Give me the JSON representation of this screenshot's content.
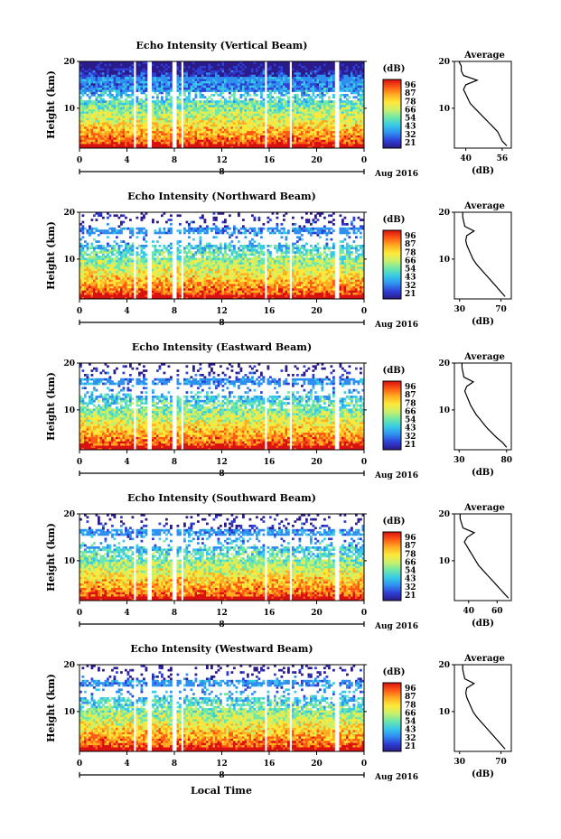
{
  "figure": {
    "x_title": "Local Time",
    "date_label": "Aug 2016",
    "day_marker": "8",
    "colorbar_unit": "(dB)",
    "colorbar_levels": [
      "96",
      "87",
      "78",
      "66",
      "54",
      "43",
      "32",
      "21"
    ],
    "colormap": [
      "#2b1a8a",
      "#2f3fd6",
      "#2f8ff0",
      "#38c9e8",
      "#6fe7a8",
      "#c9f06a",
      "#ffe83a",
      "#ffae22",
      "#ff5a14",
      "#d81010"
    ]
  },
  "chart_data": [
    {
      "type": "heatmap",
      "title": "Echo Intensity (Vertical Beam)",
      "ylabel": "Height (km)",
      "x_ticks": [
        "0",
        "4",
        "8",
        "12",
        "16",
        "20",
        "0"
      ],
      "y_ticks": [
        "20",
        "10"
      ],
      "xlim": [
        0,
        24
      ],
      "ylim": [
        1.5,
        20
      ],
      "gaps_hours": [
        [
          4.5,
          4.85
        ],
        [
          5.8,
          6.05
        ],
        [
          7.85,
          8.1
        ],
        [
          8.55,
          8.8
        ],
        [
          15.55,
          15.85
        ],
        [
          17.65,
          17.9
        ],
        [
          21.6,
          21.85
        ]
      ],
      "profile": {
        "title": "Average",
        "xlabel": "(dB)",
        "x_ticks": [
          "40",
          "56"
        ],
        "xlim": [
          35,
          60
        ],
        "heights_km": [
          2,
          3,
          4,
          5,
          6,
          7,
          8,
          9,
          10,
          11,
          12,
          13,
          14,
          15,
          16,
          17,
          18,
          19,
          20
        ],
        "values_db": [
          58,
          56,
          55,
          54,
          52,
          50,
          48,
          46,
          44,
          42,
          41,
          40,
          39,
          40,
          45,
          39,
          38,
          38,
          37
        ]
      }
    },
    {
      "type": "heatmap",
      "title": "Echo Intensity (Northward Beam)",
      "ylabel": "Height (km)",
      "x_ticks": [
        "0",
        "4",
        "8",
        "12",
        "16",
        "20",
        "0"
      ],
      "y_ticks": [
        "20",
        "10"
      ],
      "xlim": [
        0,
        24
      ],
      "ylim": [
        1.5,
        20
      ],
      "gaps_hours": [
        [
          4.5,
          4.85
        ],
        [
          5.8,
          6.05
        ],
        [
          7.85,
          8.1
        ],
        [
          8.55,
          8.8
        ],
        [
          15.55,
          15.85
        ],
        [
          17.65,
          17.9
        ],
        [
          21.6,
          21.85
        ]
      ],
      "profile": {
        "title": "Average",
        "xlabel": "(dB)",
        "x_ticks": [
          "30",
          "70"
        ],
        "xlim": [
          25,
          80
        ],
        "heights_km": [
          2,
          3,
          4,
          5,
          6,
          7,
          8,
          9,
          10,
          11,
          12,
          13,
          14,
          15,
          16,
          17,
          18,
          19,
          20
        ],
        "values_db": [
          74,
          70,
          66,
          62,
          58,
          54,
          50,
          46,
          43,
          41,
          39,
          37,
          36,
          37,
          44,
          35,
          34,
          33,
          33
        ]
      }
    },
    {
      "type": "heatmap",
      "title": "Echo Intensity (Eastward Beam)",
      "ylabel": "Height (km)",
      "x_ticks": [
        "0",
        "4",
        "8",
        "12",
        "16",
        "20",
        "0"
      ],
      "y_ticks": [
        "20",
        "10"
      ],
      "xlim": [
        0,
        24
      ],
      "ylim": [
        1.5,
        20
      ],
      "gaps_hours": [
        [
          4.5,
          4.85
        ],
        [
          5.8,
          6.05
        ],
        [
          7.85,
          8.1
        ],
        [
          8.55,
          8.8
        ],
        [
          15.55,
          15.85
        ],
        [
          17.65,
          17.9
        ],
        [
          21.6,
          21.85
        ]
      ],
      "profile": {
        "title": "Average",
        "xlabel": "(dB)",
        "x_ticks": [
          "30",
          "80"
        ],
        "xlim": [
          25,
          85
        ],
        "heights_km": [
          2,
          3,
          4,
          5,
          6,
          7,
          8,
          9,
          10,
          11,
          12,
          13,
          14,
          15,
          16,
          17,
          18,
          19,
          20
        ],
        "values_db": [
          80,
          76,
          70,
          65,
          60,
          56,
          52,
          48,
          45,
          42,
          40,
          38,
          36,
          38,
          45,
          35,
          34,
          33,
          33
        ]
      }
    },
    {
      "type": "heatmap",
      "title": "Echo Intensity (Southward Beam)",
      "ylabel": "Height (km)",
      "x_ticks": [
        "0",
        "4",
        "8",
        "12",
        "16",
        "20",
        "0"
      ],
      "y_ticks": [
        "20",
        "10"
      ],
      "xlim": [
        0,
        24
      ],
      "ylim": [
        1.5,
        20
      ],
      "gaps_hours": [
        [
          4.5,
          4.85
        ],
        [
          5.8,
          6.05
        ],
        [
          7.85,
          8.1
        ],
        [
          8.55,
          8.8
        ],
        [
          15.55,
          15.85
        ],
        [
          17.65,
          17.9
        ],
        [
          21.6,
          21.85
        ]
      ],
      "profile": {
        "title": "Average",
        "xlabel": "(dB)",
        "x_ticks": [
          "40",
          "60"
        ],
        "xlim": [
          30,
          70
        ],
        "heights_km": [
          2,
          3,
          4,
          5,
          6,
          7,
          8,
          9,
          10,
          11,
          12,
          13,
          14,
          15,
          16,
          17,
          18,
          19,
          20
        ],
        "values_db": [
          68,
          65,
          62,
          59,
          56,
          53,
          50,
          47,
          45,
          43,
          41,
          39,
          37,
          39,
          44,
          36,
          35,
          34,
          34
        ]
      }
    },
    {
      "type": "heatmap",
      "title": "Echo Intensity (Westward Beam)",
      "ylabel": "Height (km)",
      "x_ticks": [
        "0",
        "4",
        "8",
        "12",
        "16",
        "20",
        "0"
      ],
      "y_ticks": [
        "20",
        "10"
      ],
      "xlim": [
        0,
        24
      ],
      "ylim": [
        1.5,
        20
      ],
      "gaps_hours": [
        [
          4.5,
          4.85
        ],
        [
          5.8,
          6.05
        ],
        [
          7.85,
          8.1
        ],
        [
          8.55,
          8.8
        ],
        [
          15.55,
          15.85
        ],
        [
          17.65,
          17.9
        ],
        [
          21.6,
          21.85
        ]
      ],
      "profile": {
        "title": "Average",
        "xlabel": "(dB)",
        "x_ticks": [
          "30",
          "70"
        ],
        "xlim": [
          25,
          80
        ],
        "heights_km": [
          2,
          3,
          4,
          5,
          6,
          7,
          8,
          9,
          10,
          11,
          12,
          13,
          14,
          15,
          16,
          17,
          18,
          19,
          20
        ],
        "values_db": [
          74,
          70,
          66,
          62,
          58,
          54,
          50,
          46,
          43,
          41,
          39,
          37,
          36,
          37,
          44,
          35,
          34,
          33,
          33
        ]
      }
    }
  ]
}
